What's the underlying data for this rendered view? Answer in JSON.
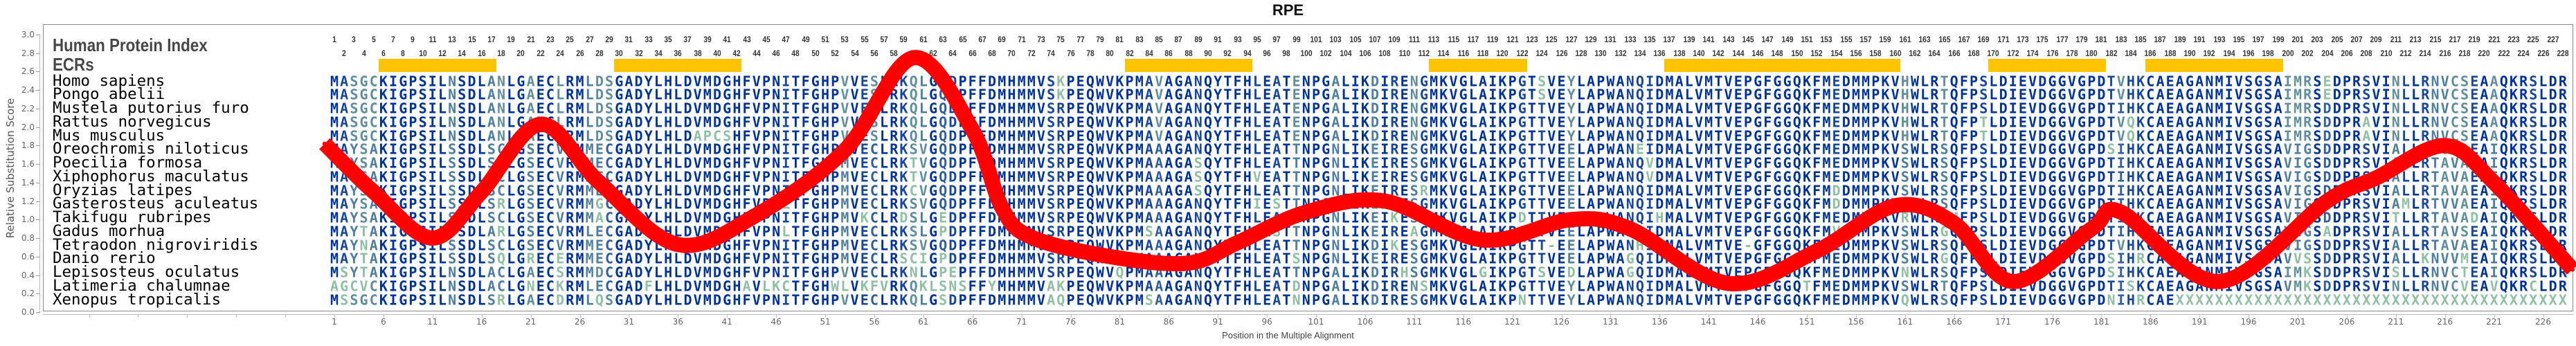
{
  "title": "RPE",
  "header": {
    "protein_index_label": "Human Protein Index",
    "ecr_label": "ECRs"
  },
  "columns": {
    "first": 1,
    "last": 228
  },
  "ecr_regions": [
    [
      6,
      17
    ],
    [
      30,
      42
    ],
    [
      82,
      94
    ],
    [
      113,
      122
    ],
    [
      137,
      160
    ],
    [
      170,
      181
    ],
    [
      186,
      199
    ]
  ],
  "colors": {
    "ecr": "#ffc400",
    "curve": "#ff0000",
    "conserved": "#003399",
    "variable": "#8fc0a4"
  },
  "species": [
    {
      "name": "Homo sapiens",
      "blocks": [
        "MASGCKIGPSILNSDLANLGAECLRMLDSGADYLHLDVMDGHFVPNITFG",
        "HPVVESLRKQLGQDPFFDMHMMVSKPEQWVKPMAVAGANQYTFHLEATEN",
        "PGALIKDIRENGMKVGLAIKPGTSVEYLAPWANQIDMALVMTVEPGFGGQ",
        "KFMEDMMPKVHWLRTQFPSLDIEVDGGVGPDTVHKCAEAGANMIVSGSAI",
        "MRSEDPRSVINLLRNVCSEAAQKRSLDR"
      ]
    },
    {
      "name": "Pongo abelii",
      "blocks": [
        "MASGCKIGPSILNSDLANLGAECLRMLDSGADYLHLDVMDGHFVPNITFG",
        "HPVVESLRKQLGQDPFFDMHMMVSKPEQWVKPMAVAGANQYTFHLEATEN",
        "PGALIKDIRENGMKVGLAIKPGTSVEYLAPWANQIDMALVMTVEPGFGGQ",
        "KFMEDMMPKVHWLRTQFPSLDIEVDGGVGPDTVHKCAEAGANMIVSGSAI",
        "MRSEDPRSVINLLRNVCSEAAQKRSLDR"
      ]
    },
    {
      "name": "Mustela putorius furo",
      "blocks": [
        "MASGCKIGPSILNSDLANLGAECLRMLDSGADYLHLDVMDGHFVPNITFG",
        "HPVVESLRKQLGQDPFFDMHMMVSRPEQWVKPMAVAGANQYTFHLEATEN",
        "PGALIKDIRENGMKVGLAIKPGTTVEYLAPWANQIDMALVMTVEPGFGGQ",
        "KFMEDMMPKVHWLRTQFPSLDIEVDGGVGPDTIHKCAEAGANMIVSGSAI",
        "MRSDDPRSVINLLRNVCSEAAQKRSLDR"
      ]
    },
    {
      "name": "Rattus norvegicus",
      "blocks": [
        "MASGCKIGPSILNSDLANLGAECLRMLDSGADYLHLDVMDGHFVPNITFG",
        "HPVVESLRKQLGQDPFFDMHMMVSRPEQWVKPMAVAGANQYTFHLEATEN",
        "PGALIKDIRENGMKVGLAIKPGTTVEYLAPWANQIDMALVMTVEPGFGGQ",
        "KFMEDMMPKVHWLRTQFPTLDIEVDGGVGPDTVQKCAEAGANMIVSGSAI",
        "MRSDDPRAVINLLRNVCSEAAQKRSLDR"
      ]
    },
    {
      "name": "Mus musculus",
      "blocks": [
        "MASGCKIGPSILNSDLANLGAECLRMLDSGADYLHLDAPCSHFVPNITFG",
        "HPVVESLRKQLGQDPFFDMHMMVSRPEQWVKPMAVAGANQYTFHLEATEN",
        "PGALIKDIRENGMKVGLAIKPGTTVEYLAPWANQIDMALVMTVEPGFGGQ",
        "KFMEDMMPKVHWLRTQFPTLDIEVDGGVGPDTVQKCAEAGANMIVSGSAI",
        "MRSDDPRAVINLLRNVCSEAAQKRSLDR"
      ]
    },
    {
      "name": "Oreochromis niloticus",
      "blocks": [
        "MAYSAKIGPSILSSDLSCLGSECVRMMECGADYLHLDVMDGHFVPNITFG",
        "HPMVECLRKSVGQDPFFDMHMMVSRPEQWVKPMAAAGANQYTFHLEATTN",
        "PGNLIKEIRESGMKVGLAIKPGTTVEELAPWANEIDMALVMTVEPGFGGQ",
        "KFMEDMMPKVSWLRSQFPSLDIEVDGGVGPDSIHKCAEAGANMIVSGSAV",
        "IGSDDPRSVIALLRTVVAEAIQKRSLDR"
      ]
    },
    {
      "name": "Poecilia formosa",
      "blocks": [
        "MAYSAKIGPSILSSDLSCLGSECVRMMECGADYLHLDVMDGHFVPNITFG",
        "HPMVECLRKTVGQDPFFDMHMMVSRPEQWVKPMAAAGASQYTFHLEATTN",
        "PGNLIKEIRESGMKVGLAIKPGTTVEELAPWANQVDMALVMTVEPGFGGQ",
        "KFMEDMMPKVSWLRSQFPSLDIEVDGGVGPDTIHKCAEAGANMIVSGSAV",
        "IGSDDPRSVIALLRTAVAEAIQKRSLDR"
      ]
    },
    {
      "name": "Xiphophorus maculatus",
      "blocks": [
        "MAYSAKIGPSILSSDLSCLGSECVRMMECGADYLHLDVMDGHFVPNITFG",
        "HPMVECLRKTVGQDPFFDMHMMVSRPEQWVKPMAAAGASQYTFHVEATTN",
        "PGNLIKEIRESGMKVGLAIKPGTTVEELAPWANQVDMALVMTVEPGFGGQ",
        "KFMEDMMPKVSWLRSQFPSLDIEVDGGVGPDTIHKCAEAGANMIVSGSAV",
        "IGSDDPRSVIALLRTAVAEAIQKRSLDR"
      ]
    },
    {
      "name": "Oryzias latipes",
      "blocks": [
        "MAYSAKIGPSILSSDLSCLGSECVRMMECGADYLHLDVMDGHFVPNITFG",
        "HPMVECLRKCVGQDPFFDMHMMVSRPEQWVKPMAAAGASQYTFHLEATTN",
        "PGNLIKEIRESRMKVGLAIKPGTTVEELAPWANQIDMALVMTVEPGFGGQ",
        "KFMDDMMPKVSWLRSQFPSLDIEVDGGVGPDTIHKCAEAGANMIVSGSAV",
        "IGSDDPRSVIALLRTAVAEAIQKRSLDR"
      ]
    },
    {
      "name": "Gasterosteus aculeatus",
      "blocks": [
        "MAYSAKIGPSILSSDLSRLGSECVRMMGCGADYLHLDVMDGHFVPNLTFG",
        "HPMVECLRKSVGQDPFFDMHMMVSRPEQWVKPMAAAGANQYTFHIESTTN",
        "PGNLIKEIKESGMKVGLAIKPGTTVEELAPWANQIDMALVMTVEPGFGGQ",
        "KFMDDMMPKVSWLRSQFPSLDIEVDGGVGPDTIHKCAEAGANMIVSGSAV",
        "IGSEDPRSVIAMLRTVVAEAIQKRSLDR"
      ]
    },
    {
      "name": "Takifugu rubripes",
      "blocks": [
        "MAYSAKIGPSILSSDLSCLGSECVRMMACGADYLHLDVMDGHFVPNITFG",
        "HPMVKCLRDSLGEDPFFDMHMMVSRPEQWVKPMAAAGANQYTFHLEATTN",
        "PGNLIKEIKESGMKVGLAIKPDTTVEELAPWANQIHMALVMTVEPGFGGQ",
        "KFMEDMMPKVRWLRSMFPSLDIEVDGGVGPDTIHKCAEAGANMIVSGSAV",
        "IGSDDPRSVITLLRTAVADAIQKRSLDR"
      ]
    },
    {
      "name": "Gadus morhua",
      "blocks": [
        "MAYTAKIGPSILSSDLARLGSECVRMLECGADYLHLDVMDGHFVPNLTFG",
        "HPMVECLRKSLGPDPFFDMHMMVSRPEQWVKPMSAAGANQYTFHLESTTN",
        "PGNLIKEIREAGMKVGLAIKPGTTVEELAPWANQIDMALVMTVEPGFGGQ",
        "KFMVDMMPKVSWLRGQFPSLDIEVDGGVGPDTIHRCAEAGANMIVSGSAV",
        "IGSADPRSVIALLRTAVSEAIQKRSLDR"
      ]
    },
    {
      "name": "Tetraodon nigroviridis",
      "blocks": [
        "MAYNAKIGPSILSSDLSCLGSECVRMMECGADYLHLDVMDGHFVPNITFG",
        "HPMVECLRKSVGQDPFFDMHMMVSRPEQWVKPMAAAGANQYTFHLEATTN",
        "PGNLIKDIKESGMKVGLAIKPGTT-EELAPWANHIDMALVMTVE-GFGGQ",
        "KFMEDMMPKVSWLRSQFPSLDIEVDGGVGPDTVHKCAEAGANMIVSGSAV",
        "IGSDDPRSVIALLRTAVAEAIQKRSLDR"
      ]
    },
    {
      "name": "Danio rerio",
      "blocks": [
        "MAYTAKIGPSILSSDLSQLGRECERMMECGADYLHLDVMDGHFVPNITFG",
        "HPMVECLRSCIGPDPFFDMHMMVSRPEQWVKPMAAAGANQYTFHLEATSN",
        "PGNLIKEIRESGMKVGLAIKPGTTVEELAPWAGQIDMALVMTVEPGFGGQ",
        "KFMEDMMPKVSWLRGQFPSLDIEVDGGVGPDSIHRCAEAGANMIVSGSAV",
        "VSSDDPRSVIALLKNVVMEAIQKRSLDR"
      ]
    },
    {
      "name": "Lepisosteus oculatus",
      "blocks": [
        "MSYTAKIGPSILNSDLACLGAECSRMMDCGADYLHLDVMDGHFVPNITFG",
        "HPVVECLRKNLGPEPFFDMHMMVSRPEQWVQPMAAAGANQYTFHLEATTN",
        "PGALIKDIRHSGMKVGLGIKPGTSVEDLAPWAGQIDMALVMTVEPGFGGQ",
        "KFMEDMMPKVNWLRSQFPSLDIEVDGGVGPDSIHKCAEAGANMIVSGSAI",
        "MKSDDPRSVISLLRNVCTEAIQKRSLDR"
      ]
    },
    {
      "name": "Latimeria chalumnae",
      "blocks": [
        "AGCVCKIGPSILNSDLACLGNECKRMLECGADFLHLDVMDGHAVLKCTFG",
        "HWLVKFVRKQKLSNSFFYMHMMVAKPEQWVKPMAAAGANQYTFHLEATDN",
        "PGALIKDIRENSMKVGLAIKPGTTVEYLAPWANQIDMALVMTVEPGFGGQ",
        "TFMEDMMPKVSWLRTQFPSLDIEVDGGVGPDTISKCAEAGANMIVSGSAV",
        "MKSDDPRSVINLLRNVCVEAVQKRCLDR"
      ]
    },
    {
      "name": "Xenopus tropicalis",
      "blocks": [
        "MSSGCKIGPSILNSDLSRLGAECDRMLQSGADYLHLDVMDGHFVPNITFG",
        "HPVVECLRKQLGSDPFFDMHMMVAQPEQWVKPMSAAGANQYTFHLEATNN",
        "PGALIKDIRESGMKVGLAIKPNTTVEYLAPWANQIDMALVMTVEPGFGGQ",
        "KFMEDMMPKVQWLRSQFPSLDIEVDGGVGPDNIHRCAEXXXXXXXXXXXX",
        "XXXXXXXXXXXXXXXXXXXXXXXXXXXX"
      ]
    }
  ],
  "chart_data": {
    "type": "line",
    "title": "RPE",
    "xlabel": "Position in the Multiple Alignment",
    "ylabel": "Relative Substitution Score",
    "xlim": [
      1,
      228
    ],
    "ylim": [
      0,
      3
    ],
    "yticks": [
      "0.0",
      "0.2",
      "0.4",
      "0.6",
      "0.8",
      "1.0",
      "1.2",
      "1.4",
      "1.6",
      "1.8",
      "2.0",
      "2.2",
      "2.4",
      "2.6",
      "2.8",
      "3.0"
    ],
    "xticks": [
      "1",
      "6",
      "11",
      "16",
      "21",
      "26",
      "31",
      "36",
      "41",
      "46",
      "51",
      "56",
      "61",
      "66",
      "71",
      "76",
      "81",
      "86",
      "91",
      "96",
      "101",
      "106",
      "111",
      "116",
      "121",
      "126",
      "131",
      "136",
      "141",
      "146",
      "151",
      "156",
      "161",
      "166",
      "171",
      "176",
      "181",
      "186",
      "191",
      "196",
      "201",
      "206",
      "211",
      "216",
      "221",
      "226"
    ],
    "grid": false,
    "series": [
      {
        "name": "Relative Substitution Score",
        "x": [
          0,
          5,
          11,
          16,
          22,
          28,
          36,
          44,
          53,
          60,
          66,
          69,
          72,
          80,
          88,
          93,
          100,
          108,
          118,
          127,
          133,
          143,
          152,
          160,
          166,
          172,
          180,
          183,
          193,
          204,
          209,
          216,
          221,
          229
        ],
        "y": [
          1.82,
          1.3,
          0.8,
          1.3,
          2.03,
          1.4,
          0.73,
          1.05,
          1.75,
          2.75,
          1.97,
          1.13,
          0.81,
          0.6,
          0.53,
          0.75,
          1.08,
          1.2,
          0.78,
          1.0,
          0.9,
          0.31,
          0.66,
          1.15,
          0.96,
          0.33,
          0.9,
          1.08,
          0.33,
          1.2,
          1.45,
          1.8,
          1.4,
          0.46
        ]
      }
    ]
  }
}
